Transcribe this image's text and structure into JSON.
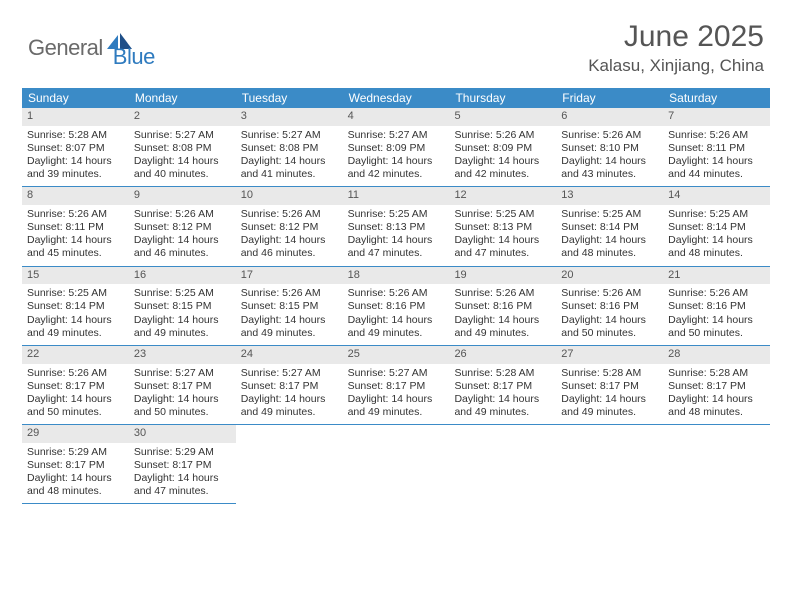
{
  "brand": {
    "general": "General",
    "blue": "Blue"
  },
  "title": "June 2025",
  "location": "Kalasu, Xinjiang, China",
  "colors": {
    "header_bar": "#3b8bc7",
    "daynum_bg": "#e9e9e9",
    "text": "#333333",
    "brand_gray": "#6a6a6a",
    "brand_blue": "#2f7bbf"
  },
  "weekdays": [
    "Sunday",
    "Monday",
    "Tuesday",
    "Wednesday",
    "Thursday",
    "Friday",
    "Saturday"
  ],
  "weeks": [
    [
      {
        "n": "1",
        "sr": "Sunrise: 5:28 AM",
        "ss": "Sunset: 8:07 PM",
        "d1": "Daylight: 14 hours",
        "d2": "and 39 minutes."
      },
      {
        "n": "2",
        "sr": "Sunrise: 5:27 AM",
        "ss": "Sunset: 8:08 PM",
        "d1": "Daylight: 14 hours",
        "d2": "and 40 minutes."
      },
      {
        "n": "3",
        "sr": "Sunrise: 5:27 AM",
        "ss": "Sunset: 8:08 PM",
        "d1": "Daylight: 14 hours",
        "d2": "and 41 minutes."
      },
      {
        "n": "4",
        "sr": "Sunrise: 5:27 AM",
        "ss": "Sunset: 8:09 PM",
        "d1": "Daylight: 14 hours",
        "d2": "and 42 minutes."
      },
      {
        "n": "5",
        "sr": "Sunrise: 5:26 AM",
        "ss": "Sunset: 8:09 PM",
        "d1": "Daylight: 14 hours",
        "d2": "and 42 minutes."
      },
      {
        "n": "6",
        "sr": "Sunrise: 5:26 AM",
        "ss": "Sunset: 8:10 PM",
        "d1": "Daylight: 14 hours",
        "d2": "and 43 minutes."
      },
      {
        "n": "7",
        "sr": "Sunrise: 5:26 AM",
        "ss": "Sunset: 8:11 PM",
        "d1": "Daylight: 14 hours",
        "d2": "and 44 minutes."
      }
    ],
    [
      {
        "n": "8",
        "sr": "Sunrise: 5:26 AM",
        "ss": "Sunset: 8:11 PM",
        "d1": "Daylight: 14 hours",
        "d2": "and 45 minutes."
      },
      {
        "n": "9",
        "sr": "Sunrise: 5:26 AM",
        "ss": "Sunset: 8:12 PM",
        "d1": "Daylight: 14 hours",
        "d2": "and 46 minutes."
      },
      {
        "n": "10",
        "sr": "Sunrise: 5:26 AM",
        "ss": "Sunset: 8:12 PM",
        "d1": "Daylight: 14 hours",
        "d2": "and 46 minutes."
      },
      {
        "n": "11",
        "sr": "Sunrise: 5:25 AM",
        "ss": "Sunset: 8:13 PM",
        "d1": "Daylight: 14 hours",
        "d2": "and 47 minutes."
      },
      {
        "n": "12",
        "sr": "Sunrise: 5:25 AM",
        "ss": "Sunset: 8:13 PM",
        "d1": "Daylight: 14 hours",
        "d2": "and 47 minutes."
      },
      {
        "n": "13",
        "sr": "Sunrise: 5:25 AM",
        "ss": "Sunset: 8:14 PM",
        "d1": "Daylight: 14 hours",
        "d2": "and 48 minutes."
      },
      {
        "n": "14",
        "sr": "Sunrise: 5:25 AM",
        "ss": "Sunset: 8:14 PM",
        "d1": "Daylight: 14 hours",
        "d2": "and 48 minutes."
      }
    ],
    [
      {
        "n": "15",
        "sr": "Sunrise: 5:25 AM",
        "ss": "Sunset: 8:14 PM",
        "d1": "Daylight: 14 hours",
        "d2": "and 49 minutes."
      },
      {
        "n": "16",
        "sr": "Sunrise: 5:25 AM",
        "ss": "Sunset: 8:15 PM",
        "d1": "Daylight: 14 hours",
        "d2": "and 49 minutes."
      },
      {
        "n": "17",
        "sr": "Sunrise: 5:26 AM",
        "ss": "Sunset: 8:15 PM",
        "d1": "Daylight: 14 hours",
        "d2": "and 49 minutes."
      },
      {
        "n": "18",
        "sr": "Sunrise: 5:26 AM",
        "ss": "Sunset: 8:16 PM",
        "d1": "Daylight: 14 hours",
        "d2": "and 49 minutes."
      },
      {
        "n": "19",
        "sr": "Sunrise: 5:26 AM",
        "ss": "Sunset: 8:16 PM",
        "d1": "Daylight: 14 hours",
        "d2": "and 49 minutes."
      },
      {
        "n": "20",
        "sr": "Sunrise: 5:26 AM",
        "ss": "Sunset: 8:16 PM",
        "d1": "Daylight: 14 hours",
        "d2": "and 50 minutes."
      },
      {
        "n": "21",
        "sr": "Sunrise: 5:26 AM",
        "ss": "Sunset: 8:16 PM",
        "d1": "Daylight: 14 hours",
        "d2": "and 50 minutes."
      }
    ],
    [
      {
        "n": "22",
        "sr": "Sunrise: 5:26 AM",
        "ss": "Sunset: 8:17 PM",
        "d1": "Daylight: 14 hours",
        "d2": "and 50 minutes."
      },
      {
        "n": "23",
        "sr": "Sunrise: 5:27 AM",
        "ss": "Sunset: 8:17 PM",
        "d1": "Daylight: 14 hours",
        "d2": "and 50 minutes."
      },
      {
        "n": "24",
        "sr": "Sunrise: 5:27 AM",
        "ss": "Sunset: 8:17 PM",
        "d1": "Daylight: 14 hours",
        "d2": "and 49 minutes."
      },
      {
        "n": "25",
        "sr": "Sunrise: 5:27 AM",
        "ss": "Sunset: 8:17 PM",
        "d1": "Daylight: 14 hours",
        "d2": "and 49 minutes."
      },
      {
        "n": "26",
        "sr": "Sunrise: 5:28 AM",
        "ss": "Sunset: 8:17 PM",
        "d1": "Daylight: 14 hours",
        "d2": "and 49 minutes."
      },
      {
        "n": "27",
        "sr": "Sunrise: 5:28 AM",
        "ss": "Sunset: 8:17 PM",
        "d1": "Daylight: 14 hours",
        "d2": "and 49 minutes."
      },
      {
        "n": "28",
        "sr": "Sunrise: 5:28 AM",
        "ss": "Sunset: 8:17 PM",
        "d1": "Daylight: 14 hours",
        "d2": "and 48 minutes."
      }
    ],
    [
      {
        "n": "29",
        "sr": "Sunrise: 5:29 AM",
        "ss": "Sunset: 8:17 PM",
        "d1": "Daylight: 14 hours",
        "d2": "and 48 minutes."
      },
      {
        "n": "30",
        "sr": "Sunrise: 5:29 AM",
        "ss": "Sunset: 8:17 PM",
        "d1": "Daylight: 14 hours",
        "d2": "and 47 minutes."
      },
      null,
      null,
      null,
      null,
      null
    ]
  ]
}
